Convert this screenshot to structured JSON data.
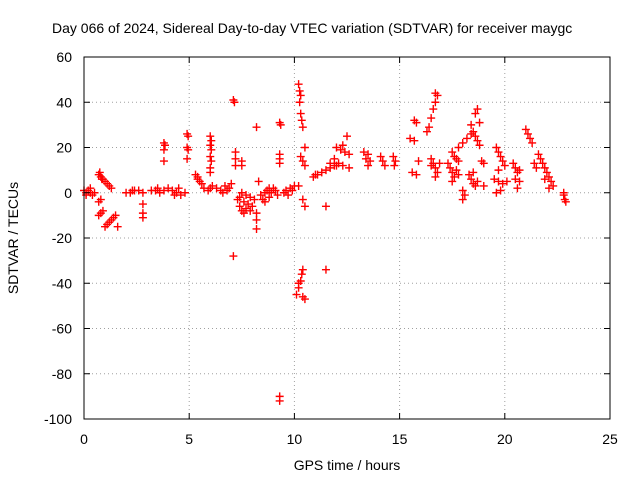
{
  "chart_data": {
    "type": "scatter",
    "title": "Day 066 of 2024, Sidereal Day-to-day VTEC variation (SDTVAR) for receiver maygc",
    "xlabel": "GPS time / hours",
    "ylabel": "SDTVAR / TECUs",
    "xlim": [
      0,
      25
    ],
    "ylim": [
      -100,
      60
    ],
    "xticks": [
      0,
      5,
      10,
      15,
      20,
      25
    ],
    "yticks": [
      -100,
      -80,
      -60,
      -40,
      -20,
      0,
      20,
      40,
      60
    ],
    "grid": true,
    "marker": "+",
    "color": "#ff0000",
    "series": [
      {
        "name": "SDTVAR",
        "points": [
          [
            0.0,
            1
          ],
          [
            0.1,
            0
          ],
          [
            0.2,
            1
          ],
          [
            0.3,
            0
          ],
          [
            0.4,
            -1
          ],
          [
            0.5,
            0
          ],
          [
            0.3,
            2
          ],
          [
            0.1,
            -1
          ],
          [
            0.7,
            8
          ],
          [
            0.8,
            7
          ],
          [
            0.9,
            6
          ],
          [
            1.0,
            5
          ],
          [
            1.1,
            4
          ],
          [
            1.2,
            3
          ],
          [
            1.3,
            2
          ],
          [
            0.75,
            9
          ],
          [
            0.85,
            6
          ],
          [
            0.7,
            -4
          ],
          [
            0.8,
            -3
          ],
          [
            0.7,
            -10
          ],
          [
            0.8,
            -9
          ],
          [
            0.9,
            -8
          ],
          [
            1.0,
            -15
          ],
          [
            1.1,
            -14
          ],
          [
            1.2,
            -13
          ],
          [
            1.3,
            -12
          ],
          [
            1.4,
            -11
          ],
          [
            1.5,
            -10
          ],
          [
            1.6,
            -15
          ],
          [
            2.0,
            0
          ],
          [
            2.2,
            0
          ],
          [
            2.4,
            1
          ],
          [
            2.6,
            1
          ],
          [
            2.8,
            0
          ],
          [
            2.3,
            1
          ],
          [
            2.8,
            -5
          ],
          [
            2.8,
            -9
          ],
          [
            2.8,
            -11
          ],
          [
            3.2,
            1
          ],
          [
            3.4,
            1
          ],
          [
            3.6,
            0
          ],
          [
            3.8,
            1
          ],
          [
            4.0,
            2
          ],
          [
            3.5,
            2
          ],
          [
            3.8,
            22
          ],
          [
            3.85,
            21
          ],
          [
            3.8,
            19
          ],
          [
            3.8,
            14
          ],
          [
            4.2,
            1
          ],
          [
            4.4,
            0
          ],
          [
            4.6,
            -1
          ],
          [
            4.8,
            0
          ],
          [
            4.5,
            2
          ],
          [
            4.3,
            -1
          ],
          [
            4.9,
            26
          ],
          [
            4.95,
            25
          ],
          [
            4.9,
            20
          ],
          [
            4.95,
            19
          ],
          [
            4.9,
            15
          ],
          [
            5.3,
            8
          ],
          [
            5.4,
            7
          ],
          [
            5.5,
            5
          ],
          [
            5.6,
            4
          ],
          [
            5.7,
            2
          ],
          [
            5.4,
            6
          ],
          [
            5.9,
            1
          ],
          [
            6.0,
            2
          ],
          [
            6.1,
            3
          ],
          [
            6.0,
            25
          ],
          [
            6.05,
            23
          ],
          [
            6.0,
            21
          ],
          [
            6.05,
            19
          ],
          [
            6.0,
            16
          ],
          [
            6.05,
            14
          ],
          [
            6.0,
            11
          ],
          [
            6.0,
            9
          ],
          [
            6.3,
            2
          ],
          [
            6.5,
            1
          ],
          [
            6.7,
            3
          ],
          [
            6.9,
            2
          ],
          [
            7.0,
            4
          ],
          [
            6.6,
            0
          ],
          [
            6.8,
            1
          ],
          [
            7.1,
            41
          ],
          [
            7.15,
            40
          ],
          [
            7.2,
            18
          ],
          [
            7.2,
            15
          ],
          [
            7.2,
            12
          ],
          [
            7.1,
            -28
          ],
          [
            7.3,
            -3
          ],
          [
            7.4,
            -6
          ],
          [
            7.5,
            -8
          ],
          [
            7.6,
            -4
          ],
          [
            7.7,
            -7
          ],
          [
            7.8,
            -5
          ],
          [
            7.9,
            -2
          ],
          [
            8.0,
            -6
          ],
          [
            8.1,
            -3
          ],
          [
            7.5,
            0
          ],
          [
            7.7,
            -1
          ],
          [
            7.9,
            -8
          ],
          [
            8.2,
            -9
          ],
          [
            7.6,
            -9
          ],
          [
            7.4,
            -2
          ],
          [
            7.5,
            14
          ],
          [
            7.5,
            12
          ],
          [
            8.2,
            29
          ],
          [
            8.2,
            -16
          ],
          [
            8.2,
            -12
          ],
          [
            8.3,
            5
          ],
          [
            8.4,
            -1
          ],
          [
            8.5,
            -3
          ],
          [
            8.6,
            0
          ],
          [
            8.7,
            1
          ],
          [
            8.8,
            -2
          ],
          [
            8.9,
            0
          ],
          [
            9.0,
            2
          ],
          [
            9.1,
            1
          ],
          [
            9.2,
            -1
          ],
          [
            8.6,
            -4
          ],
          [
            8.8,
            2
          ],
          [
            9.3,
            31
          ],
          [
            9.35,
            30
          ],
          [
            9.3,
            17
          ],
          [
            9.3,
            15
          ],
          [
            9.3,
            13
          ],
          [
            9.3,
            -90
          ],
          [
            9.3,
            -92
          ],
          [
            9.5,
            0
          ],
          [
            9.6,
            1
          ],
          [
            9.8,
            2
          ],
          [
            10.0,
            3
          ],
          [
            10.2,
            3
          ],
          [
            9.7,
            -1
          ],
          [
            9.9,
            1
          ],
          [
            10.2,
            48
          ],
          [
            10.25,
            45
          ],
          [
            10.3,
            43
          ],
          [
            10.25,
            40
          ],
          [
            10.3,
            35
          ],
          [
            10.35,
            32
          ],
          [
            10.4,
            29
          ],
          [
            10.3,
            16
          ],
          [
            10.4,
            14
          ],
          [
            10.5,
            12
          ],
          [
            10.4,
            -3
          ],
          [
            10.5,
            -6
          ],
          [
            10.1,
            -45
          ],
          [
            10.2,
            -42
          ],
          [
            10.3,
            -39
          ],
          [
            10.35,
            -36
          ],
          [
            10.4,
            -34
          ],
          [
            10.4,
            -46
          ],
          [
            10.5,
            -47
          ],
          [
            10.2,
            -40
          ],
          [
            10.5,
            20
          ],
          [
            10.9,
            7
          ],
          [
            11.1,
            8
          ],
          [
            11.3,
            9
          ],
          [
            11.5,
            10
          ],
          [
            11.7,
            11
          ],
          [
            11.9,
            12
          ],
          [
            12.1,
            13
          ],
          [
            11.0,
            8
          ],
          [
            11.5,
            -34
          ],
          [
            11.5,
            -6
          ],
          [
            11.7,
            13
          ],
          [
            11.9,
            15
          ],
          [
            12.0,
            20
          ],
          [
            12.2,
            19
          ],
          [
            12.4,
            18
          ],
          [
            12.6,
            17
          ],
          [
            12.3,
            21
          ],
          [
            12.5,
            25
          ],
          [
            12.0,
            12
          ],
          [
            12.3,
            12
          ],
          [
            12.6,
            11
          ],
          [
            13.3,
            18
          ],
          [
            13.5,
            17
          ],
          [
            13.4,
            15
          ],
          [
            13.6,
            14
          ],
          [
            13.5,
            12
          ],
          [
            14.1,
            16
          ],
          [
            14.2,
            14
          ],
          [
            14.3,
            12
          ],
          [
            14.7,
            16
          ],
          [
            14.8,
            14
          ],
          [
            14.75,
            12
          ],
          [
            15.5,
            24
          ],
          [
            15.7,
            23
          ],
          [
            15.6,
            9
          ],
          [
            15.8,
            8
          ],
          [
            15.9,
            14
          ],
          [
            15.7,
            32
          ],
          [
            15.8,
            31
          ],
          [
            16.3,
            27
          ],
          [
            16.4,
            29
          ],
          [
            16.5,
            33
          ],
          [
            16.6,
            37
          ],
          [
            16.7,
            40
          ],
          [
            16.8,
            43
          ],
          [
            16.7,
            44
          ],
          [
            16.5,
            15
          ],
          [
            16.6,
            13
          ],
          [
            16.7,
            11
          ],
          [
            16.8,
            9
          ],
          [
            16.9,
            13
          ],
          [
            16.5,
            12
          ],
          [
            16.7,
            7
          ],
          [
            17.3,
            13
          ],
          [
            17.4,
            11
          ],
          [
            17.5,
            9
          ],
          [
            17.6,
            7
          ],
          [
            17.7,
            10
          ],
          [
            17.8,
            8
          ],
          [
            17.5,
            5
          ],
          [
            17.5,
            18
          ],
          [
            17.6,
            16
          ],
          [
            17.7,
            15
          ],
          [
            17.8,
            14
          ],
          [
            17.8,
            20
          ],
          [
            18.0,
            22
          ],
          [
            18.2,
            24
          ],
          [
            18.4,
            26
          ],
          [
            18.0,
            -3
          ],
          [
            18.1,
            -1
          ],
          [
            18.0,
            1
          ],
          [
            18.3,
            8
          ],
          [
            18.4,
            6
          ],
          [
            18.5,
            4
          ],
          [
            18.6,
            3
          ],
          [
            18.7,
            5
          ],
          [
            18.5,
            9
          ],
          [
            18.4,
            30
          ],
          [
            18.5,
            27
          ],
          [
            18.6,
            25
          ],
          [
            18.7,
            23
          ],
          [
            18.8,
            21
          ],
          [
            18.6,
            35
          ],
          [
            18.7,
            37
          ],
          [
            18.8,
            31
          ],
          [
            18.9,
            14
          ],
          [
            19.0,
            13
          ],
          [
            19.0,
            3
          ],
          [
            19.6,
            20
          ],
          [
            19.7,
            18
          ],
          [
            19.8,
            16
          ],
          [
            19.9,
            14
          ],
          [
            20.0,
            12
          ],
          [
            19.7,
            10
          ],
          [
            19.5,
            6
          ],
          [
            19.7,
            5
          ],
          [
            19.9,
            4
          ],
          [
            20.1,
            5
          ],
          [
            19.8,
            1
          ],
          [
            19.6,
            0
          ],
          [
            20.4,
            13
          ],
          [
            20.5,
            11
          ],
          [
            20.6,
            9
          ],
          [
            20.7,
            10
          ],
          [
            20.5,
            6
          ],
          [
            20.7,
            5
          ],
          [
            20.6,
            2
          ],
          [
            21.0,
            28
          ],
          [
            21.1,
            26
          ],
          [
            21.2,
            24
          ],
          [
            21.3,
            22
          ],
          [
            21.4,
            13
          ],
          [
            21.5,
            11
          ],
          [
            21.6,
            17
          ],
          [
            21.7,
            15
          ],
          [
            21.8,
            13
          ],
          [
            21.9,
            11
          ],
          [
            22.0,
            9
          ],
          [
            22.1,
            7
          ],
          [
            22.2,
            5
          ],
          [
            22.3,
            3
          ],
          [
            21.9,
            6
          ],
          [
            22.1,
            2
          ],
          [
            22.8,
            -1
          ],
          [
            22.85,
            -3
          ],
          [
            22.9,
            -4
          ],
          [
            22.8,
            0
          ]
        ]
      }
    ]
  }
}
